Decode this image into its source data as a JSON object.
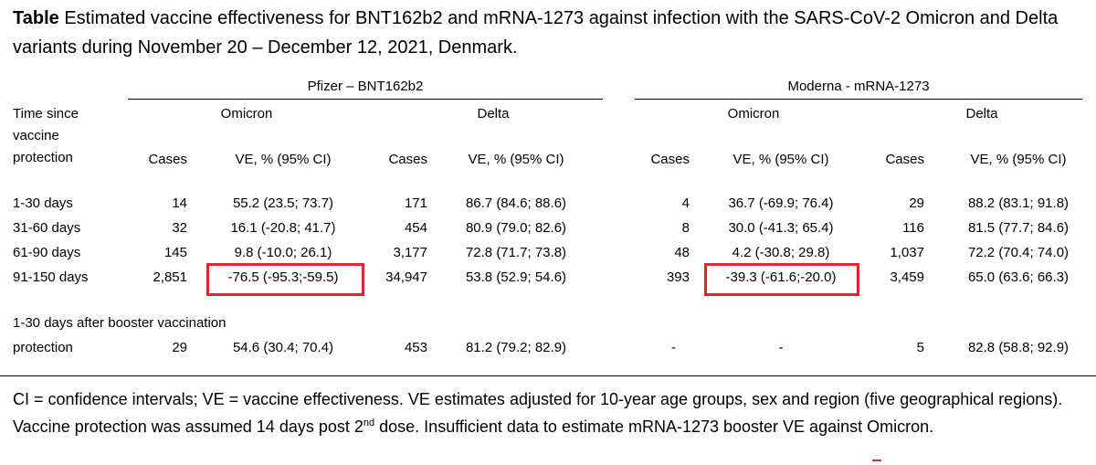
{
  "title": {
    "bold": "Table",
    "text": " Estimated vaccine effectiveness for BNT162b2 and mRNA-1273 against infection with the SARS-CoV-2 Omicron and Delta variants during November 20 – December 12, 2021, Denmark."
  },
  "groups": {
    "pfizer": "Pfizer – BNT162b2",
    "moderna": "Moderna - mRNA-1273"
  },
  "variants": {
    "omicron": "Omicron",
    "delta": "Delta"
  },
  "row_header": [
    "Time since",
    "vaccine",
    "protection"
  ],
  "col_headers": {
    "cases": "Cases",
    "ve": "VE, % (95% CI)"
  },
  "rows": [
    {
      "label": "1-30 days",
      "p_om_cases": "14",
      "p_om_ve": "55.2 (23.5; 73.7)",
      "p_de_cases": "171",
      "p_de_ve": "86.7 (84.6; 88.6)",
      "m_om_cases": "4",
      "m_om_ve": "36.7 (-69.9; 76.4)",
      "m_de_cases": "29",
      "m_de_ve": "88.2 (83.1; 91.8)"
    },
    {
      "label": "31-60 days",
      "p_om_cases": "32",
      "p_om_ve": "16.1 (-20.8; 41.7)",
      "p_de_cases": "454",
      "p_de_ve": "80.9 (79.0; 82.6)",
      "m_om_cases": "8",
      "m_om_ve": "30.0 (-41.3; 65.4)",
      "m_de_cases": "116",
      "m_de_ve": "81.5 (77.7; 84.6)"
    },
    {
      "label": "61-90 days",
      "p_om_cases": "145",
      "p_om_ve": "9.8 (-10.0; 26.1)",
      "p_de_cases": "3,177",
      "p_de_ve": "72.8 (71.7; 73.8)",
      "m_om_cases": "48",
      "m_om_ve": "4.2 (-30.8; 29.8)",
      "m_de_cases": "1,037",
      "m_de_ve": "72.2 (70.4; 74.0)"
    },
    {
      "label": "91-150 days",
      "p_om_cases": "2,851",
      "p_om_ve": "-76.5 (-95.3;-59.5)",
      "p_de_cases": "34,947",
      "p_de_ve": "53.8 (52.9; 54.6)",
      "m_om_cases": "393",
      "m_om_ve": "-39.3 (-61.6;-20.0)",
      "m_de_cases": "3,459",
      "m_de_ve": "65.0 (63.6; 66.3)"
    }
  ],
  "booster": {
    "label_line1": "1-30 days after booster vaccination",
    "label_line2": "protection",
    "p_om_cases": "29",
    "p_om_ve": "54.6 (30.4; 70.4)",
    "p_de_cases": "453",
    "p_de_ve": "81.2 (79.2; 82.9)",
    "m_om_cases": "-",
    "m_om_ve": "-",
    "m_de_cases": "5",
    "m_de_ve": "82.8 (58.8; 92.9)"
  },
  "footer": {
    "part1": "CI = confidence intervals; VE = vaccine effectiveness. VE estimates adjusted for 10-year age groups, sex and region (five geographical regions). Vaccine protection was assumed 14 days post 2",
    "sup": "nd",
    "part2": " dose. Insufficient data to estimate mRNA-1273 booster VE against Omicron."
  },
  "highlight_color": "#e0262b"
}
